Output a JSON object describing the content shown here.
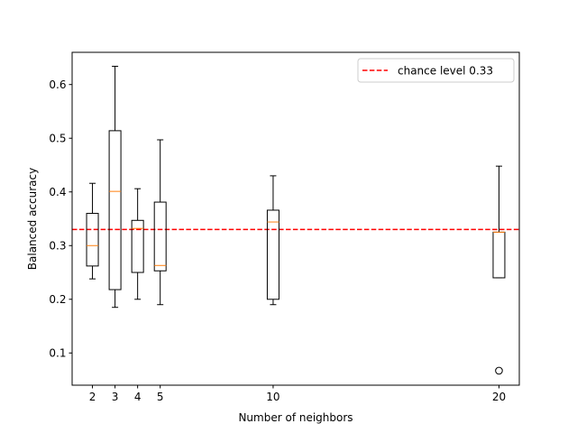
{
  "chart_data": {
    "type": "box",
    "title": "",
    "xlabel": "Number of neighbors",
    "ylabel": "Balanced accuracy",
    "xlim": [
      1.1,
      20.9
    ],
    "ylim": [
      0.04,
      0.66
    ],
    "xticks": [
      2,
      3,
      4,
      5,
      10,
      20
    ],
    "yticks": [
      0.1,
      0.2,
      0.3,
      0.4,
      0.5,
      0.6
    ],
    "grid": false,
    "legend": {
      "placement": "top-right",
      "entries": [
        "chance level 0.33"
      ]
    },
    "reference_line": {
      "label": "chance level 0.33",
      "value": 0.33,
      "color": "#ff0000",
      "style": "dashed"
    },
    "boxes": [
      {
        "x": 2,
        "whisker_low": 0.238,
        "q1": 0.262,
        "median": 0.3,
        "q3": 0.36,
        "whisker_high": 0.416,
        "outliers": []
      },
      {
        "x": 3,
        "whisker_low": 0.185,
        "q1": 0.218,
        "median": 0.401,
        "q3": 0.514,
        "whisker_high": 0.634,
        "outliers": []
      },
      {
        "x": 4,
        "whisker_low": 0.2,
        "q1": 0.25,
        "median": 0.332,
        "q3": 0.347,
        "whisker_high": 0.406,
        "outliers": []
      },
      {
        "x": 5,
        "whisker_low": 0.19,
        "q1": 0.253,
        "median": 0.263,
        "q3": 0.381,
        "whisker_high": 0.497,
        "outliers": []
      },
      {
        "x": 10,
        "whisker_low": 0.19,
        "q1": 0.2,
        "median": 0.344,
        "q3": 0.366,
        "whisker_high": 0.43,
        "outliers": []
      },
      {
        "x": 20,
        "whisker_low": 0.24,
        "q1": 0.24,
        "median": 0.325,
        "q3": 0.325,
        "whisker_high": 0.448,
        "outliers": [
          0.067
        ]
      }
    ],
    "colors": {
      "box": "#000000",
      "median": "#ff7f0e",
      "reference": "#ff0000"
    }
  }
}
